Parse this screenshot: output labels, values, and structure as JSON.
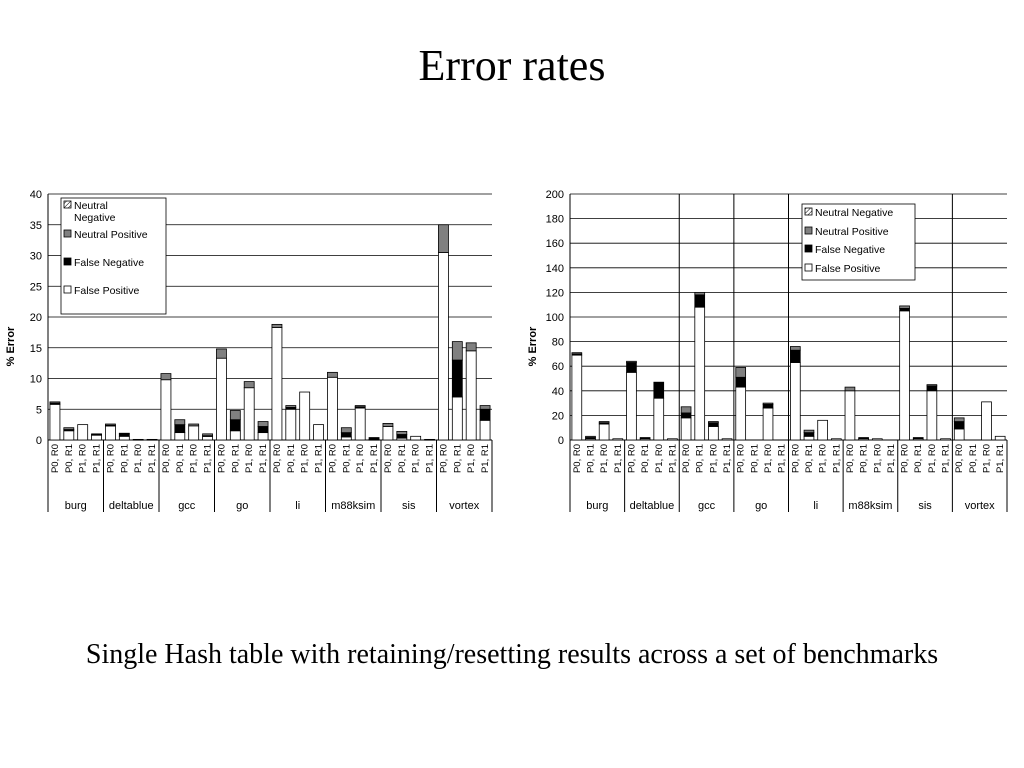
{
  "slide": {
    "title": "Error rates",
    "caption": "Single Hash table with retaining/resetting results across a set of benchmarks"
  },
  "chart_data": [
    {
      "type": "bar",
      "stacked": true,
      "ylabel": "% Error",
      "ylim": [
        0,
        40
      ],
      "yticks": [
        0,
        5,
        10,
        15,
        20,
        25,
        30,
        35,
        40
      ],
      "grid": true,
      "legend_position": "top-left",
      "legend": [
        "Neutral Negative",
        "Neutral Positive",
        "False Negative",
        "False Positive"
      ],
      "legend_display": [
        "Neutral\nNegative",
        "Neutral Positive",
        "False Negative",
        "False Positive"
      ],
      "groups": [
        "burg",
        "deltablue",
        "gcc",
        "go",
        "li",
        "m88ksim",
        "sis",
        "vortex"
      ],
      "categories": [
        "P0, R0",
        "P0, R1",
        "P1, R0",
        "P1, R1"
      ],
      "series": [
        {
          "name": "False Positive",
          "color": "#ffffff",
          "values": [
            [
              5.8,
              1.5,
              2.5,
              0.8
            ],
            [
              2.3,
              0.6,
              0.1,
              0.1
            ],
            [
              9.8,
              1.2,
              2.3,
              0.6
            ],
            [
              13.3,
              1.5,
              8.5,
              1.2
            ],
            [
              18.3,
              5.0,
              7.8,
              2.5
            ],
            [
              10.2,
              0.5,
              5.2,
              0.1
            ],
            [
              2.2,
              0.3,
              0.6,
              0.1
            ],
            [
              30.5,
              7.0,
              14.5,
              3.2
            ]
          ]
        },
        {
          "name": "False Negative",
          "color": "#000000",
          "values": [
            [
              0.2,
              0.2,
              0,
              0.1
            ],
            [
              0.1,
              0.4,
              0,
              0
            ],
            [
              0,
              1.3,
              0,
              0.1
            ],
            [
              0,
              1.8,
              0,
              1.0
            ],
            [
              0,
              0.3,
              0,
              0
            ],
            [
              0,
              0.7,
              0.2,
              0.3
            ],
            [
              0,
              0.6,
              0,
              0
            ],
            [
              0,
              6.0,
              0,
              1.8
            ]
          ]
        },
        {
          "name": "Neutral Positive",
          "color": "#808080",
          "values": [
            [
              0.2,
              0.3,
              0,
              0.1
            ],
            [
              0.2,
              0.1,
              0,
              0
            ],
            [
              1.0,
              0.8,
              0.3,
              0.3
            ],
            [
              1.5,
              1.5,
              1.0,
              0.8
            ],
            [
              0.5,
              0.3,
              0,
              0
            ],
            [
              0.8,
              0.8,
              0.2,
              0
            ],
            [
              0.5,
              0.5,
              0,
              0
            ],
            [
              4.5,
              3.0,
              1.3,
              0.6
            ]
          ]
        },
        {
          "name": "Neutral Negative",
          "color": "#ffffff",
          "hatch": true,
          "values": [
            [
              0,
              0,
              0,
              0
            ],
            [
              0,
              0,
              0,
              0
            ],
            [
              0,
              0,
              0,
              0
            ],
            [
              0,
              0,
              0,
              0
            ],
            [
              0,
              0,
              0,
              0
            ],
            [
              0,
              0,
              0,
              0
            ],
            [
              0,
              0,
              0,
              0
            ],
            [
              0,
              0,
              0,
              0
            ]
          ]
        }
      ]
    },
    {
      "type": "bar",
      "stacked": true,
      "ylabel": "% Error",
      "ylim": [
        0,
        200
      ],
      "yticks": [
        0,
        20,
        40,
        60,
        80,
        100,
        120,
        140,
        160,
        180,
        200
      ],
      "grid": true,
      "legend_position": "top-right",
      "legend": [
        "Neutral Negative",
        "Neutral Positive",
        "False Negative",
        "False Positive"
      ],
      "legend_display": [
        "Neutral Negative",
        "Neutral Positive",
        "False Negative",
        "False Positive"
      ],
      "groups": [
        "burg",
        "deltablue",
        "gcc",
        "go",
        "li",
        "m88ksim",
        "sis",
        "vortex"
      ],
      "categories": [
        "P0, R0",
        "P0, R1",
        "P1, R0",
        "P1, R1"
      ],
      "series": [
        {
          "name": "False Positive",
          "color": "#ffffff",
          "values": [
            [
              69,
              1,
              13,
              1
            ],
            [
              55,
              1,
              34,
              1
            ],
            [
              18,
              108,
              11,
              1
            ],
            [
              43,
              0,
              26,
              0
            ],
            [
              63,
              3,
              16,
              1
            ],
            [
              40,
              1,
              1,
              0
            ],
            [
              105,
              1,
              40,
              1
            ],
            [
              9,
              0,
              31,
              3
            ]
          ]
        },
        {
          "name": "False Negative",
          "color": "#000000",
          "values": [
            [
              1,
              1,
              1,
              0
            ],
            [
              8,
              1,
              13,
              0
            ],
            [
              4,
              10,
              3,
              0
            ],
            [
              8,
              0,
              3,
              0
            ],
            [
              10,
              3,
              0,
              0
            ],
            [
              0,
              1,
              0,
              0
            ],
            [
              2,
              1,
              4,
              0
            ],
            [
              6,
              0,
              0,
              0
            ]
          ]
        },
        {
          "name": "Neutral Positive",
          "color": "#808080",
          "values": [
            [
              1,
              1,
              1,
              0
            ],
            [
              1,
              0,
              0,
              0
            ],
            [
              5,
              2,
              1,
              0
            ],
            [
              8,
              0,
              1,
              0
            ],
            [
              3,
              2,
              0,
              0
            ],
            [
              3,
              0,
              0,
              0
            ],
            [
              2,
              0,
              1,
              0
            ],
            [
              3,
              0,
              0,
              0
            ]
          ]
        },
        {
          "name": "Neutral Negative",
          "color": "#ffffff",
          "hatch": true,
          "values": [
            [
              0,
              0,
              0,
              0
            ],
            [
              0,
              0,
              0,
              0
            ],
            [
              0,
              0,
              0,
              0
            ],
            [
              0,
              0,
              0,
              0
            ],
            [
              0,
              0,
              0,
              0
            ],
            [
              0,
              0,
              0,
              0
            ],
            [
              0,
              0,
              0,
              0
            ],
            [
              0,
              0,
              0,
              0
            ]
          ]
        }
      ]
    }
  ]
}
